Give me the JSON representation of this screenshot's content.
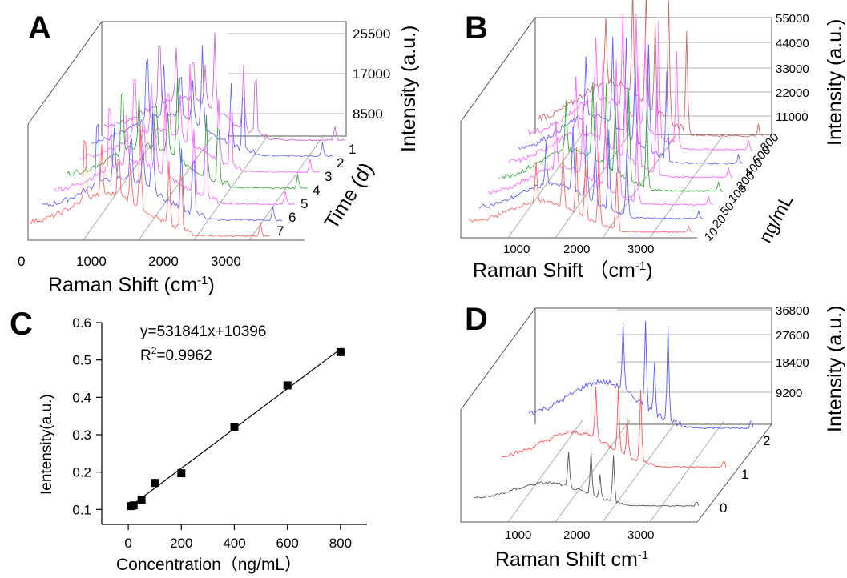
{
  "panels": [
    {
      "letter": "A",
      "x_title": "Raman Shift (cm",
      "x_title_sup": "-1",
      "x_title_end": ")",
      "z_title": "Intensity (a.u.)",
      "depth_title": "Time (d)",
      "x_ticks": [
        "0",
        "1000",
        "2000",
        "3000"
      ],
      "z_ticks": [
        "25500",
        "17000",
        "8500"
      ],
      "depth_ticks": [
        "1",
        "2",
        "3",
        "4",
        "5",
        "6",
        "7"
      ]
    },
    {
      "letter": "B",
      "x_title": "Raman Shift （cm",
      "x_title_sup": "-1",
      "x_title_end": ")",
      "z_title": "Intensity (a.u.)",
      "depth_title": "ng/mL",
      "x_ticks": [
        "1000",
        "2000",
        "3000"
      ],
      "z_ticks": [
        "55000",
        "44000",
        "33000",
        "22000",
        "11000"
      ],
      "depth_ticks": [
        "800",
        "600",
        "400",
        "200",
        "100",
        "50",
        "20",
        "10"
      ]
    },
    {
      "letter": "D",
      "x_title": "Raman Shift cm",
      "x_title_sup": "-1",
      "x_title_end": "",
      "z_title": "Intensity (a.u.)",
      "depth_title": "",
      "x_ticks": [
        "1000",
        "2000",
        "3000"
      ],
      "z_ticks": [
        "36800",
        "27600",
        "18400",
        "9200"
      ],
      "depth_ticks": [
        "2",
        "1",
        "0"
      ]
    }
  ],
  "chart_data": [
    {
      "panel": "A",
      "type": "line",
      "title": "",
      "xlabel": "Raman Shift (cm-1)",
      "ylabel": "Intensity (a.u.)",
      "zlabel": "Time (d)",
      "xlim": [
        0,
        3800
      ],
      "ylim": [
        0,
        25500
      ],
      "series_count": 7,
      "series_labels": [
        "1",
        "2",
        "3",
        "4",
        "5",
        "6",
        "7"
      ],
      "colors": [
        "#ff6666",
        "#6666ff",
        "#ff66ff",
        "#33aa33",
        "#ff66ff",
        "#6666ff",
        "#cc66cc"
      ]
    },
    {
      "panel": "B",
      "type": "line",
      "title": "",
      "xlabel": "Raman Shift （cm-1)",
      "ylabel": "Intensity (a.u.)",
      "zlabel": "ng/mL",
      "xlim": [
        0,
        3800
      ],
      "ylim": [
        0,
        55000
      ],
      "series_labels": [
        "10",
        "20",
        "50",
        "100",
        "200",
        "400",
        "600",
        "800"
      ],
      "colors": [
        "#ff6666",
        "#6666ff",
        "#ff66ff",
        "#33aa33",
        "#ff66ff",
        "#6666ff",
        "#ff66ff",
        "#cc6666"
      ]
    },
    {
      "panel": "C",
      "type": "scatter",
      "title": "",
      "xlabel": "Concentration（ng/mL）",
      "ylabel": "Ientensity(a.u.)",
      "xlim": [
        -100,
        900
      ],
      "ylim": [
        0.06,
        0.6
      ],
      "x": [
        10,
        20,
        50,
        100,
        200,
        400,
        600,
        800
      ],
      "y": [
        0.109,
        0.111,
        0.126,
        0.171,
        0.197,
        0.321,
        0.432,
        0.521
      ],
      "fit": {
        "slope_per_ng": 0.000531841,
        "intercept": 0.10396
      },
      "annotation_eq": "y=531841x+10396",
      "annotation_r2_prefix": "R",
      "annotation_r2_sup": "2",
      "annotation_r2_value": "=0.9962",
      "x_ticks": [
        "0",
        "200",
        "400",
        "600",
        "800"
      ],
      "y_ticks": [
        "0.1",
        "0.2",
        "0.3",
        "0.4",
        "0.5",
        "0.6"
      ]
    },
    {
      "panel": "D",
      "type": "line",
      "title": "",
      "xlabel": "Raman Shift cm-1",
      "ylabel": "Intensity (a.u.)",
      "zlabel": "",
      "xlim": [
        0,
        3800
      ],
      "ylim": [
        0,
        36800
      ],
      "series_labels": [
        "0",
        "1",
        "2"
      ],
      "colors": [
        "#555555",
        "#ff5555",
        "#5555ff"
      ]
    }
  ]
}
